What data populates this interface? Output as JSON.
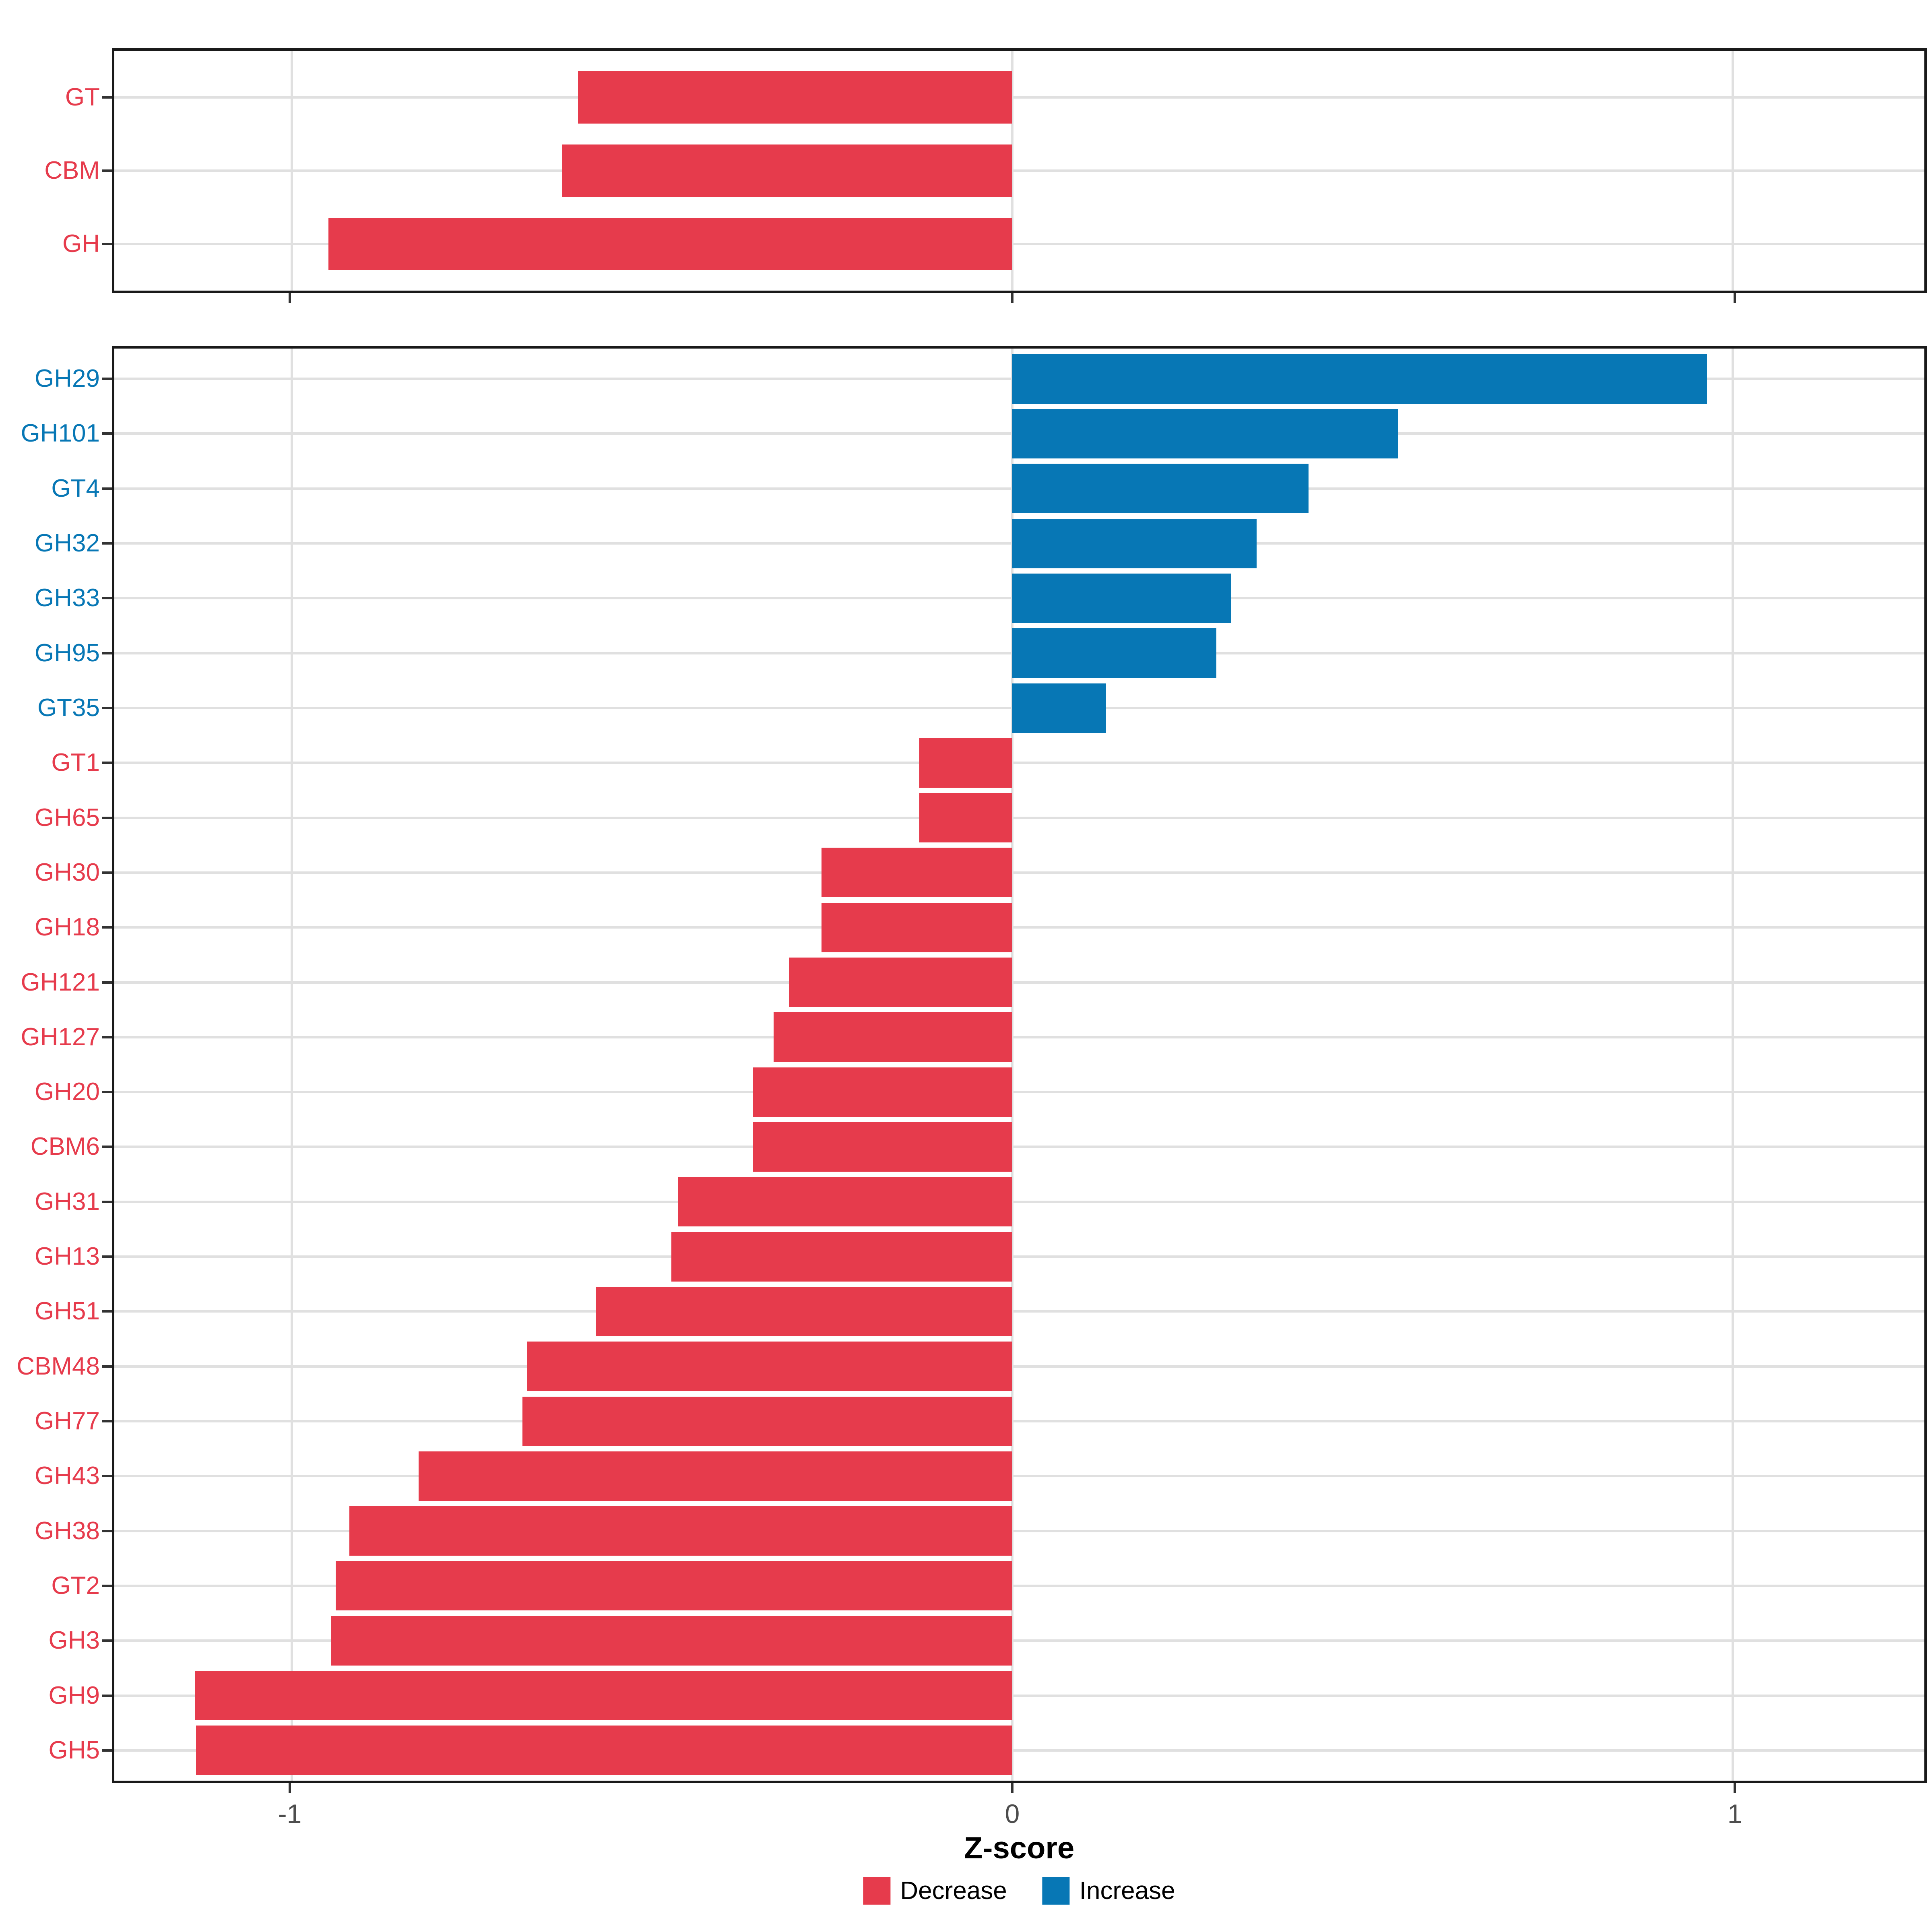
{
  "chart_data": {
    "type": "bar",
    "orientation": "horizontal",
    "title": "",
    "xlabel": "Z-score",
    "x_ticks": [
      -1,
      0,
      1
    ],
    "x_tick_labels": [
      "-1",
      "0",
      "1"
    ],
    "x_range": [
      -1.246,
      1.266
    ],
    "grid": true,
    "colors": {
      "decrease": "#e63b4c",
      "increase": "#0777b5",
      "gridline": "#e0e0e0",
      "axis_text": "#4d4d4d",
      "panel_border": "#1a1a1a"
    },
    "legend": {
      "position": "bottom",
      "items": [
        {
          "label": "Decrease",
          "color": "#e63b4c"
        },
        {
          "label": "Increase",
          "color": "#0777b5"
        }
      ]
    },
    "panels": [
      {
        "name": "enzyme-class-panel",
        "categories": [
          "GT",
          "CBM",
          "GH"
        ],
        "series": [
          {
            "name": "Z-score",
            "values": [
              -0.603,
              -0.625,
              -0.949
            ],
            "directions": [
              "Decrease",
              "Decrease",
              "Decrease"
            ]
          }
        ]
      },
      {
        "name": "enzyme-family-panel",
        "categories": [
          "GH29",
          "GH101",
          "GT4",
          "GH32",
          "GH33",
          "GH95",
          "GT35",
          "GT1",
          "GH65",
          "GH30",
          "GH18",
          "GH121",
          "GH127",
          "GH20",
          "CBM6",
          "GH31",
          "GH13",
          "GH51",
          "CBM48",
          "GH77",
          "GH43",
          "GH38",
          "GT2",
          "GH3",
          "GH9",
          "GH5"
        ],
        "series": [
          {
            "name": "Z-score",
            "values": [
              0.964,
              0.535,
              0.411,
              0.339,
              0.304,
              0.283,
              0.13,
              -0.129,
              -0.129,
              -0.265,
              -0.265,
              -0.31,
              -0.331,
              -0.36,
              -0.36,
              -0.464,
              -0.473,
              -0.578,
              -0.673,
              -0.68,
              -0.824,
              -0.92,
              -0.939,
              -0.945,
              -1.134,
              -1.133
            ],
            "directions": [
              "Increase",
              "Increase",
              "Increase",
              "Increase",
              "Increase",
              "Increase",
              "Increase",
              "Decrease",
              "Decrease",
              "Decrease",
              "Decrease",
              "Decrease",
              "Decrease",
              "Decrease",
              "Decrease",
              "Decrease",
              "Decrease",
              "Decrease",
              "Decrease",
              "Decrease",
              "Decrease",
              "Decrease",
              "Decrease",
              "Decrease",
              "Decrease",
              "Decrease"
            ]
          }
        ]
      }
    ]
  }
}
